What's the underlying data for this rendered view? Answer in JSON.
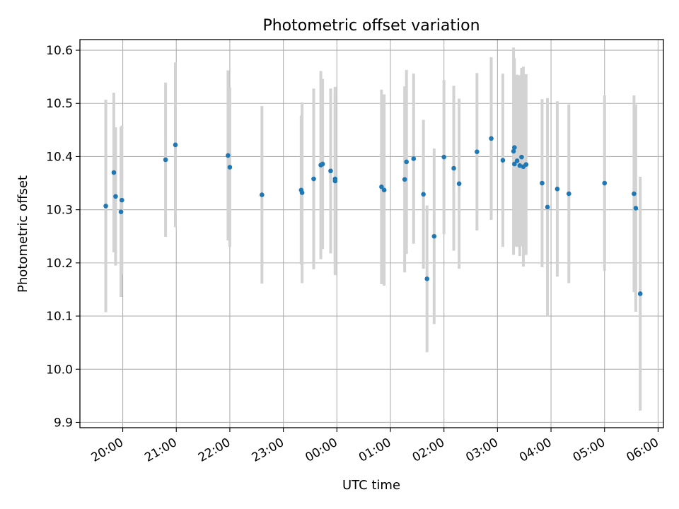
{
  "chart_data": {
    "type": "scatter",
    "title": "Photometric offset variation",
    "xlabel": "UTC time",
    "ylabel": "Photometric offset",
    "grid": true,
    "xlim": [
      "19:12",
      "06:06"
    ],
    "ylim": [
      9.89,
      10.62
    ],
    "x_ticks": [
      "20:00",
      "21:00",
      "22:00",
      "23:00",
      "00:00",
      "01:00",
      "02:00",
      "03:00",
      "04:00",
      "05:00",
      "06:00"
    ],
    "y_ticks": [
      "9.9",
      "10.0",
      "10.1",
      "10.2",
      "10.3",
      "10.4",
      "10.5",
      "10.6"
    ],
    "colors": {
      "marker": "#1f77b4",
      "errorbar": "#d3d3d3",
      "grid": "#b0b0b0"
    },
    "series": [
      {
        "x": [
          "19:41",
          "19:50",
          "19:52",
          "19:58",
          "19:59",
          "20:48",
          "20:59",
          "21:58",
          "22:00",
          "22:36",
          "23:20",
          "23:21",
          "23:34",
          "23:42",
          "23:44",
          "23:53",
          "23:58",
          "23:58",
          "00:50",
          "00:53",
          "01:16",
          "01:18",
          "01:26",
          "01:37",
          "01:41",
          "01:49",
          "02:00",
          "02:11",
          "02:17",
          "02:37",
          "02:53",
          "03:06",
          "03:18",
          "03:19",
          "03:19",
          "03:22",
          "03:25",
          "03:27",
          "03:29",
          "03:32",
          "03:50",
          "03:56",
          "04:07",
          "04:20",
          "05:00",
          "05:33",
          "05:35",
          "05:40"
        ],
        "y": [
          10.307,
          10.37,
          10.325,
          10.296,
          10.318,
          10.394,
          10.422,
          10.402,
          10.38,
          10.328,
          10.337,
          10.332,
          10.358,
          10.384,
          10.386,
          10.373,
          10.358,
          10.354,
          10.343,
          10.337,
          10.357,
          10.39,
          10.396,
          10.329,
          10.17,
          10.25,
          10.399,
          10.378,
          10.349,
          10.409,
          10.434,
          10.393,
          10.41,
          10.417,
          10.386,
          10.392,
          10.383,
          10.399,
          10.381,
          10.385,
          10.35,
          10.305,
          10.339,
          10.33,
          10.35,
          10.33,
          10.303,
          10.142
        ],
        "yerr": [
          0.2,
          0.15,
          0.13,
          0.16,
          0.14,
          0.145,
          0.155,
          0.16,
          0.15,
          0.167,
          0.14,
          0.17,
          0.17,
          0.177,
          0.16,
          0.155,
          0.16,
          0.177,
          0.183,
          0.18,
          0.175,
          0.173,
          0.16,
          0.14,
          0.138,
          0.165,
          0.145,
          0.155,
          0.16,
          0.148,
          0.153,
          0.163,
          0.195,
          0.168,
          0.155,
          0.162,
          0.17,
          0.168,
          0.188,
          0.17,
          0.158,
          0.205,
          0.165,
          0.168,
          0.165,
          0.185,
          0.195,
          0.22
        ]
      }
    ]
  }
}
